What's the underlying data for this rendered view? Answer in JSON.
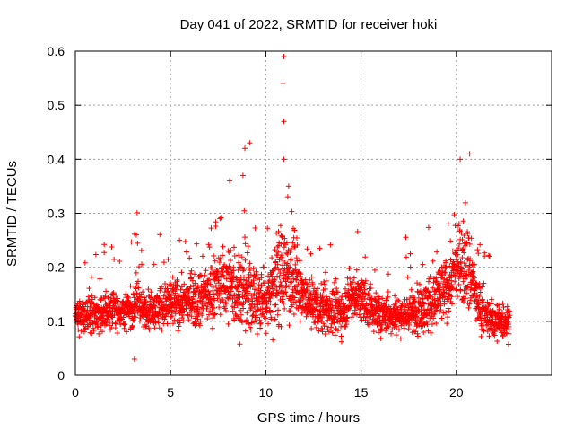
{
  "chart_data": {
    "type": "scatter",
    "title": "Day 041 of 2022, SRMTID for receiver hoki",
    "xlabel": "GPS time / hours",
    "ylabel": "SRMTID / TECUs",
    "xlim": [
      0,
      25
    ],
    "ylim": [
      0,
      0.6
    ],
    "x_ticks": [
      0,
      5,
      10,
      15,
      20
    ],
    "x_tick_labels": [
      "0",
      "5",
      "10",
      "15",
      "20"
    ],
    "y_ticks": [
      0,
      0.1,
      0.2,
      0.3,
      0.4,
      0.5,
      0.6
    ],
    "y_tick_labels": [
      "0",
      "0.1",
      "0.2",
      "0.3",
      "0.4",
      "0.5",
      "0.6"
    ],
    "grid": true,
    "marker": "plus",
    "color": "#ff0000",
    "x_data_range": [
      0,
      22.8
    ],
    "profile_hours": [
      0,
      1,
      2,
      3,
      3.2,
      3.5,
      4,
      5,
      6,
      7,
      7.5,
      8,
      8.5,
      9,
      9.5,
      10,
      10.5,
      11,
      11.5,
      12,
      12.5,
      13,
      14,
      14.5,
      15,
      16,
      17,
      18,
      19,
      19.5,
      20,
      20.5,
      21,
      21.5,
      22,
      22.8
    ],
    "profile_median": [
      0.11,
      0.11,
      0.12,
      0.12,
      0.15,
      0.12,
      0.12,
      0.13,
      0.14,
      0.15,
      0.17,
      0.17,
      0.16,
      0.15,
      0.14,
      0.14,
      0.17,
      0.19,
      0.18,
      0.14,
      0.13,
      0.12,
      0.12,
      0.15,
      0.14,
      0.11,
      0.11,
      0.12,
      0.14,
      0.16,
      0.2,
      0.22,
      0.15,
      0.11,
      0.1,
      0.1
    ],
    "profile_spread": [
      0.03,
      0.03,
      0.03,
      0.03,
      0.05,
      0.03,
      0.03,
      0.04,
      0.04,
      0.05,
      0.05,
      0.06,
      0.07,
      0.07,
      0.06,
      0.05,
      0.08,
      0.08,
      0.06,
      0.04,
      0.04,
      0.04,
      0.04,
      0.04,
      0.04,
      0.03,
      0.03,
      0.04,
      0.05,
      0.05,
      0.06,
      0.07,
      0.05,
      0.03,
      0.03,
      0.03
    ],
    "peaks": [
      {
        "x": 10.95,
        "y": 0.59
      },
      {
        "x": 10.9,
        "y": 0.54
      },
      {
        "x": 10.95,
        "y": 0.47
      },
      {
        "x": 9.15,
        "y": 0.43
      },
      {
        "x": 8.9,
        "y": 0.42
      },
      {
        "x": 20.7,
        "y": 0.41
      },
      {
        "x": 20.2,
        "y": 0.4
      },
      {
        "x": 10.95,
        "y": 0.4
      },
      {
        "x": 8.8,
        "y": 0.37
      },
      {
        "x": 11.2,
        "y": 0.35
      },
      {
        "x": 8.1,
        "y": 0.36
      },
      {
        "x": 3.2,
        "y": 0.26
      },
      {
        "x": 3.1,
        "y": 0.03
      }
    ]
  }
}
